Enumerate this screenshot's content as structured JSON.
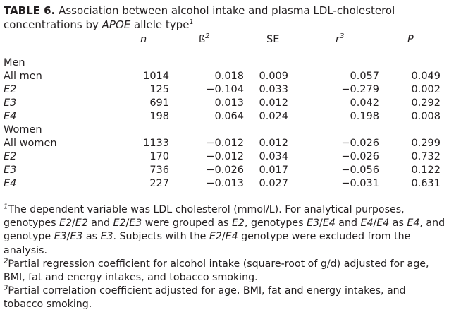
{
  "table": {
    "label": "TABLE 6.",
    "caption_a": "Association between alcohol intake and plasma LDL-cholesterol concentrations by ",
    "caption_gene": "APOE",
    "caption_b": " allele type",
    "caption_sup": "1",
    "headers": {
      "n": "n",
      "beta": "ß",
      "beta_sup": "2",
      "se": "SE",
      "r": "r",
      "r_sup": "3",
      "p": "P"
    },
    "groups": [
      {
        "title": "Men",
        "rows": [
          {
            "label": "All men",
            "italic": false,
            "n": "1014",
            "beta": "0.018",
            "se": "0.009",
            "r": "0.057",
            "p": "0.049"
          },
          {
            "label": "E2",
            "italic": true,
            "n": "125",
            "beta": "−0.104",
            "se": "0.033",
            "r": "−0.279",
            "p": "0.002"
          },
          {
            "label": "E3",
            "italic": true,
            "n": "691",
            "beta": "0.013",
            "se": "0.012",
            "r": "0.042",
            "p": "0.292"
          },
          {
            "label": "E4",
            "italic": true,
            "n": "198",
            "beta": "0.064",
            "se": "0.024",
            "r": "0.198",
            "p": "0.008"
          }
        ]
      },
      {
        "title": "Women",
        "rows": [
          {
            "label": "All women",
            "italic": false,
            "n": "1133",
            "beta": "−0.012",
            "se": "0.012",
            "r": "−0.026",
            "p": "0.299"
          },
          {
            "label": "E2",
            "italic": true,
            "n": "170",
            "beta": "−0.012",
            "se": "0.034",
            "r": "−0.026",
            "p": "0.732"
          },
          {
            "label": "E3",
            "italic": true,
            "n": "736",
            "beta": "−0.026",
            "se": "0.017",
            "r": "−0.056",
            "p": "0.122"
          },
          {
            "label": "E4",
            "italic": true,
            "n": "227",
            "beta": "−0.013",
            "se": "0.027",
            "r": "−0.031",
            "p": "0.631"
          }
        ]
      }
    ],
    "footnotes": {
      "f1_sup": "1",
      "f1_a": "The dependent variable was LDL cholesterol (mmol/L). For analytical purposes, genotypes ",
      "f1_g1": "E2",
      "f1_s1": "/",
      "f1_g2": "E2",
      "f1_t1": " and ",
      "f1_g3": "E2",
      "f1_s2": "/",
      "f1_g4": "E3",
      "f1_t2": " were grouped as ",
      "f1_g5": "E2",
      "f1_t3": ", genotypes ",
      "f1_g6": "E3",
      "f1_s3": "/",
      "f1_g7": "E4",
      "f1_t4": " and ",
      "f1_g8": "E4",
      "f1_s4": "/",
      "f1_g9": "E4",
      "f1_t5": " as ",
      "f1_g10": "E4",
      "f1_t6": ", and genotype ",
      "f1_g11": "E3",
      "f1_s5": "/",
      "f1_g12": "E3",
      "f1_t7": " as ",
      "f1_g13": "E3",
      "f1_t8": ". Subjects with the ",
      "f1_g14": "E2",
      "f1_s6": "/",
      "f1_g15": "E4",
      "f1_t9": " genotype were excluded from the analysis.",
      "f2_sup": "2",
      "f2": "Partial regression coefficient for alcohol intake (square-root of g/d) adjusted for age, BMI, fat and energy intakes, and tobacco smoking.",
      "f3_sup": "3",
      "f3": "Partial correlation coefficient adjusted for age, BMI, fat and energy intakes, and tobacco smoking."
    }
  }
}
